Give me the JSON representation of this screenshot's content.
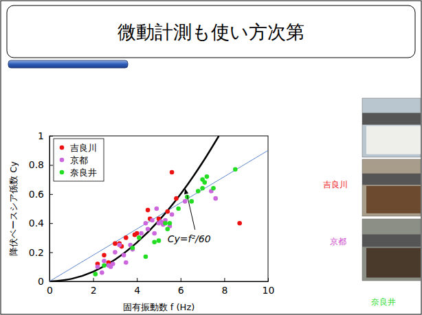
{
  "chart_data": {
    "type": "scatter",
    "title": "微動計測も使い方次第",
    "x_label": "固有振動数 f (Hz)",
    "y_label": "降伏ベースシア係数 Cy",
    "xlim": [
      0,
      10
    ],
    "ylim": [
      0,
      1
    ],
    "xticks": [
      0,
      2,
      4,
      6,
      8,
      10
    ],
    "yticks": [
      0,
      0.2,
      0.4,
      0.6,
      0.8,
      1
    ],
    "grid": false,
    "legend": "upper left",
    "annotations": [
      "Cy=f²/60"
    ],
    "series": [
      {
        "name": "吉良川",
        "color": "#ee1111",
        "marker": "circle",
        "x": [
          2.2,
          2.5,
          2.7,
          3.0,
          3.2,
          3.3,
          3.5,
          3.9,
          4.0,
          4.5,
          4.6,
          5.0,
          5.2,
          5.4,
          5.6,
          5.8,
          8.7
        ],
        "values": [
          0.12,
          0.18,
          0.13,
          0.26,
          0.26,
          0.24,
          0.3,
          0.32,
          0.33,
          0.49,
          0.43,
          0.43,
          0.4,
          0.48,
          0.75,
          0.57,
          0.4
        ]
      },
      {
        "name": "京都",
        "color": "#cc66dd",
        "marker": "circle",
        "x": [
          2.2,
          2.4,
          2.5,
          2.7,
          2.8,
          2.9,
          3.0,
          3.2,
          3.4,
          3.5,
          3.7,
          3.8,
          4.2,
          4.4,
          4.5,
          4.7,
          4.8,
          4.9,
          5.0,
          5.1,
          5.2,
          5.3,
          5.5,
          5.6,
          6.2,
          7.4,
          7.6
        ],
        "values": [
          0.1,
          0.06,
          0.14,
          0.11,
          0.1,
          0.12,
          0.2,
          0.25,
          0.18,
          0.13,
          0.25,
          0.22,
          0.33,
          0.4,
          0.36,
          0.42,
          0.33,
          0.5,
          0.4,
          0.41,
          0.39,
          0.42,
          0.38,
          0.46,
          0.55,
          0.62,
          0.57
        ]
      },
      {
        "name": "奈良井",
        "color": "#22dd22",
        "marker": "circle",
        "x": [
          2.1,
          2.5,
          3.8,
          4.1,
          4.4,
          4.8,
          5.0,
          5.3,
          5.4,
          5.5,
          5.9,
          6.3,
          6.5,
          6.8,
          7.0,
          7.0,
          7.1,
          7.2,
          7.5,
          8.5
        ],
        "values": [
          0.05,
          0.11,
          0.23,
          0.3,
          0.17,
          0.27,
          0.28,
          0.4,
          0.36,
          0.4,
          0.5,
          0.58,
          0.55,
          0.62,
          0.64,
          0.7,
          0.68,
          0.72,
          0.64,
          0.77
        ]
      },
      {
        "type": "line",
        "color": "#000000",
        "line_style": "solid",
        "x": [
          0,
          1,
          2,
          3,
          4,
          5,
          6,
          7,
          7.75
        ],
        "values": [
          0,
          0.017,
          0.067,
          0.15,
          0.267,
          0.417,
          0.6,
          0.817,
          1.0
        ]
      },
      {
        "type": "line",
        "color": "#4a78c8",
        "line_style": "solid",
        "x": [
          0,
          10
        ],
        "values": [
          0,
          0.9
        ]
      }
    ]
  },
  "photos": [
    {
      "label": "吉良川",
      "color": "#ee1111"
    },
    {
      "label": "京都",
      "color": "#cc44cc"
    },
    {
      "label": "奈良井",
      "color": "#33dd33"
    }
  ]
}
